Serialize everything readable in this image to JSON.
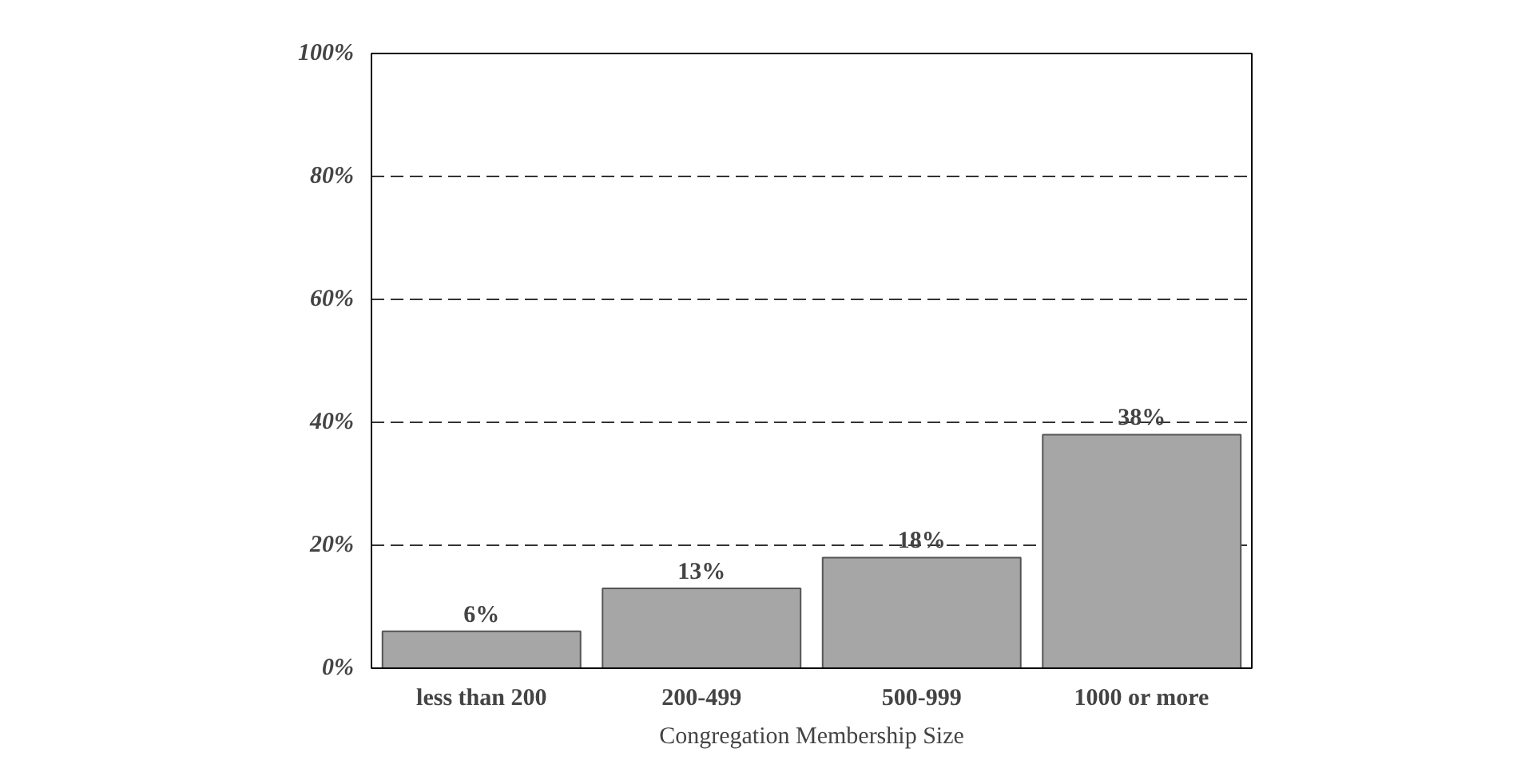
{
  "chart_data": {
    "type": "bar",
    "xlabel": "Congregation Membership Size",
    "categories": [
      "less than 200",
      "200-499",
      "500-999",
      "1000 or more"
    ],
    "values": [
      6,
      13,
      18,
      38
    ],
    "value_labels": [
      "6%",
      "13%",
      "18%",
      "38%"
    ],
    "color": "#a6a6a6",
    "ylim": [
      0,
      100
    ],
    "yticks": [
      {
        "value": 0,
        "label": "0%"
      },
      {
        "value": 20,
        "label": "20%"
      },
      {
        "value": 40,
        "label": "40%"
      },
      {
        "value": 60,
        "label": "60%"
      },
      {
        "value": 80,
        "label": "80%"
      },
      {
        "value": 100,
        "label": "100%"
      }
    ],
    "grid": "y",
    "line_style": "dashed"
  }
}
